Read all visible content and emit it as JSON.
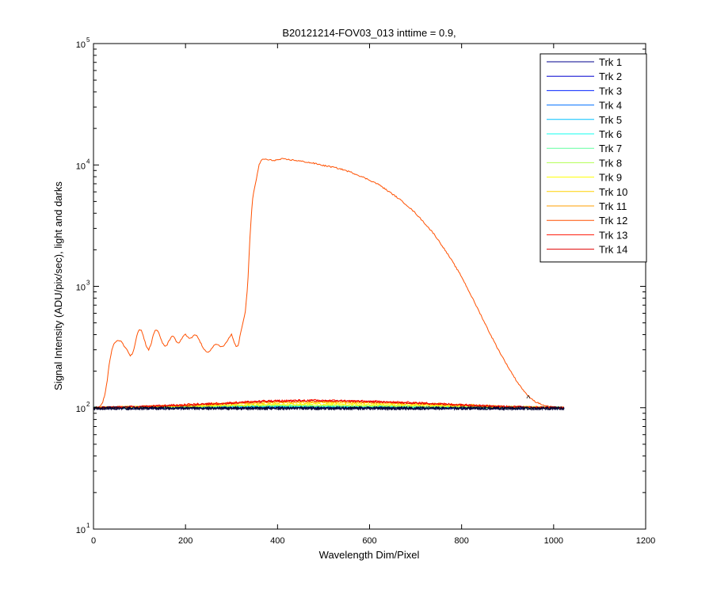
{
  "chart_data": {
    "type": "line",
    "title": "B20121214-FOV03_013 inttime = 0.9,",
    "xlabel": "Wavelength Dim/Pixel",
    "ylabel": "Signal Intensity (ADU/pix/sec), light and darks",
    "xlim": [
      0,
      1200
    ],
    "ylim": [
      10,
      100000
    ],
    "yscale": "log",
    "grid": false,
    "legend_position": "top-right",
    "x_ticks": [
      {
        "value": 0,
        "label": "0"
      },
      {
        "value": 200,
        "label": "200"
      },
      {
        "value": 400,
        "label": "400"
      },
      {
        "value": 600,
        "label": "600"
      },
      {
        "value": 800,
        "label": "800"
      },
      {
        "value": 1000,
        "label": "1000"
      },
      {
        "value": 1200,
        "label": "1200"
      }
    ],
    "y_ticks": [
      {
        "value": 10,
        "base": "10",
        "exp": "1"
      },
      {
        "value": 100,
        "base": "10",
        "exp": "2"
      },
      {
        "value": 1000,
        "base": "10",
        "exp": "3"
      },
      {
        "value": 10000,
        "base": "10",
        "exp": "4"
      },
      {
        "value": 100000,
        "base": "10",
        "exp": "5"
      }
    ],
    "x_range": [
      0,
      1023
    ],
    "series": [
      {
        "name": "Trk 1",
        "color": "#00008f",
        "x": [
          0,
          100,
          200,
          300,
          400,
          500,
          600,
          700,
          800,
          900,
          1023
        ],
        "y": [
          100,
          99,
          100,
          99,
          100,
          100,
          99,
          100,
          99,
          100,
          100
        ]
      },
      {
        "name": "Trk 2",
        "color": "#0000d0",
        "x": [
          0,
          100,
          200,
          300,
          400,
          500,
          600,
          700,
          800,
          900,
          1023
        ],
        "y": [
          99,
          100,
          99,
          100,
          101,
          100,
          100,
          99,
          100,
          99,
          100
        ]
      },
      {
        "name": "Trk 3",
        "color": "#0020ff",
        "x": [
          0,
          100,
          200,
          300,
          400,
          500,
          600,
          700,
          800,
          900,
          1023
        ],
        "y": [
          100,
          100,
          100,
          101,
          101,
          101,
          100,
          100,
          100,
          100,
          100
        ]
      },
      {
        "name": "Trk 4",
        "color": "#0070ff",
        "x": [
          0,
          100,
          200,
          300,
          400,
          500,
          600,
          700,
          800,
          900,
          1023
        ],
        "y": [
          100,
          100,
          101,
          101,
          102,
          101,
          101,
          100,
          100,
          100,
          100
        ]
      },
      {
        "name": "Trk 5",
        "color": "#00c0ff",
        "x": [
          0,
          100,
          200,
          300,
          400,
          500,
          600,
          700,
          800,
          900,
          1023
        ],
        "y": [
          100,
          100,
          101,
          102,
          102,
          102,
          101,
          101,
          100,
          100,
          100
        ]
      },
      {
        "name": "Trk 6",
        "color": "#10ffef",
        "x": [
          0,
          100,
          200,
          300,
          400,
          500,
          600,
          700,
          800,
          900,
          1023
        ],
        "y": [
          100,
          101,
          101,
          102,
          103,
          102,
          102,
          101,
          101,
          100,
          100
        ]
      },
      {
        "name": "Trk 7",
        "color": "#60ff9f",
        "x": [
          0,
          100,
          200,
          300,
          400,
          500,
          600,
          700,
          800,
          900,
          1023
        ],
        "y": [
          100,
          101,
          102,
          103,
          104,
          103,
          103,
          102,
          101,
          100,
          100
        ]
      },
      {
        "name": "Trk 8",
        "color": "#b0ff4f",
        "x": [
          0,
          100,
          200,
          300,
          400,
          500,
          600,
          700,
          800,
          900,
          1023
        ],
        "y": [
          100,
          101,
          102,
          104,
          105,
          105,
          104,
          103,
          102,
          101,
          100
        ]
      },
      {
        "name": "Trk 9",
        "color": "#ffff00",
        "x": [
          0,
          100,
          200,
          300,
          400,
          500,
          600,
          700,
          800,
          900,
          1023
        ],
        "y": [
          100,
          101,
          103,
          105,
          107,
          107,
          106,
          105,
          103,
          101,
          100
        ]
      },
      {
        "name": "Trk 10",
        "color": "#ffd000",
        "x": [
          0,
          100,
          200,
          300,
          400,
          500,
          600,
          700,
          800,
          900,
          1023
        ],
        "y": [
          100,
          102,
          104,
          107,
          110,
          110,
          109,
          107,
          104,
          102,
          100
        ]
      },
      {
        "name": "Trk 11",
        "color": "#ff9f00",
        "x": [
          0,
          100,
          200,
          300,
          400,
          500,
          600,
          700,
          800,
          900,
          1023
        ],
        "y": [
          100,
          102,
          105,
          109,
          112,
          112,
          111,
          109,
          106,
          102,
          100
        ]
      },
      {
        "name": "Trk 12",
        "color": "#ff5000",
        "x": [
          0,
          8,
          15,
          20,
          25,
          30,
          35,
          40,
          45,
          50,
          55,
          60,
          65,
          70,
          75,
          80,
          85,
          90,
          95,
          100,
          105,
          110,
          115,
          120,
          125,
          130,
          135,
          140,
          145,
          150,
          155,
          160,
          165,
          170,
          175,
          180,
          185,
          190,
          195,
          200,
          205,
          210,
          215,
          220,
          225,
          230,
          235,
          240,
          245,
          250,
          255,
          260,
          265,
          270,
          275,
          280,
          285,
          290,
          295,
          300,
          305,
          310,
          315,
          320,
          325,
          330,
          335,
          340,
          345,
          350,
          355,
          360,
          365,
          370,
          380,
          390,
          400,
          410,
          420,
          430,
          440,
          460,
          480,
          500,
          520,
          540,
          560,
          580,
          600,
          620,
          640,
          660,
          680,
          700,
          720,
          740,
          760,
          780,
          800,
          820,
          840,
          860,
          880,
          900,
          920,
          940,
          960,
          980,
          1000,
          1010,
          1020,
          1023
        ],
        "y": [
          100,
          100,
          103,
          110,
          130,
          170,
          240,
          300,
          340,
          350,
          360,
          355,
          330,
          310,
          290,
          270,
          280,
          330,
          410,
          440,
          430,
          370,
          320,
          300,
          330,
          400,
          440,
          430,
          380,
          340,
          320,
          330,
          360,
          390,
          380,
          350,
          340,
          360,
          390,
          400,
          380,
          370,
          380,
          400,
          390,
          360,
          330,
          300,
          290,
          290,
          300,
          320,
          330,
          330,
          320,
          320,
          330,
          350,
          380,
          400,
          350,
          320,
          330,
          420,
          500,
          620,
          1000,
          2500,
          5000,
          6500,
          8000,
          10000,
          11000,
          11200,
          11000,
          10900,
          11000,
          11200,
          11100,
          11000,
          10900,
          10600,
          10300,
          9900,
          9600,
          9200,
          8700,
          8100,
          7500,
          6900,
          6100,
          5400,
          4700,
          4000,
          3300,
          2700,
          2100,
          1600,
          1200,
          850,
          600,
          420,
          300,
          220,
          165,
          130,
          112,
          104,
          101,
          100,
          100,
          100
        ]
      },
      {
        "name": "Trk 13",
        "color": "#ff1000",
        "x": [
          0,
          100,
          200,
          300,
          350,
          400,
          450,
          500,
          550,
          600,
          700,
          800,
          900,
          1023
        ],
        "y": [
          100,
          102,
          106,
          110,
          113,
          114,
          115,
          115,
          114,
          113,
          110,
          106,
          102,
          100
        ]
      },
      {
        "name": "Trk 14",
        "color": "#df0000",
        "x": [
          0,
          100,
          200,
          300,
          350,
          400,
          450,
          500,
          550,
          600,
          700,
          800,
          900,
          1023
        ],
        "y": [
          100,
          102,
          105,
          109,
          112,
          113,
          114,
          114,
          113,
          112,
          109,
          105,
          102,
          100
        ]
      }
    ],
    "annotations": [
      {
        "text": "^",
        "x": 945,
        "y": 110,
        "color": "#0000d0"
      }
    ]
  }
}
